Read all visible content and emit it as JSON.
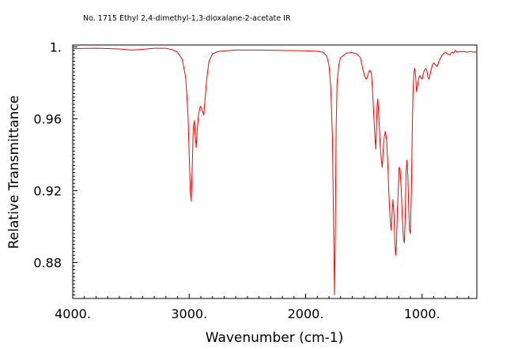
{
  "chart_data": {
    "type": "line",
    "title": "No. 1715 Ethyl 2,4-dimethyl-1,3-dioxalane-2-acetate IR",
    "xlabel": "Wavenumber (cm-1)",
    "ylabel": "Relative Transmittance",
    "xlim": [
      4000,
      530
    ],
    "ylim": [
      0.86,
      1.001
    ],
    "x_ticks": [
      4000,
      3000,
      2000,
      1000
    ],
    "x_tick_labels": [
      "4000.",
      "3000.",
      "2000.",
      "1000."
    ],
    "y_ticks": [
      1.0,
      0.96,
      0.92,
      0.88
    ],
    "y_tick_labels": [
      "1.",
      "0.96",
      "0.92",
      "0.88"
    ],
    "grid": false,
    "series": [
      {
        "color": "#ff0000",
        "points": [
          [
            4000,
            0.999
          ],
          [
            3800,
            0.9992
          ],
          [
            3600,
            0.9988
          ],
          [
            3500,
            0.9982
          ],
          [
            3400,
            0.9986
          ],
          [
            3300,
            0.9992
          ],
          [
            3200,
            0.9992
          ],
          [
            3150,
            0.9985
          ],
          [
            3100,
            0.997
          ],
          [
            3060,
            0.993
          ],
          [
            3030,
            0.983
          ],
          [
            3010,
            0.962
          ],
          [
            3000,
            0.94
          ],
          [
            2990,
            0.919
          ],
          [
            2983,
            0.914
          ],
          [
            2975,
            0.93
          ],
          [
            2965,
            0.955
          ],
          [
            2955,
            0.959
          ],
          [
            2948,
            0.951
          ],
          [
            2940,
            0.944
          ],
          [
            2932,
            0.953
          ],
          [
            2920,
            0.962
          ],
          [
            2905,
            0.967
          ],
          [
            2895,
            0.966
          ],
          [
            2885,
            0.964
          ],
          [
            2875,
            0.962
          ],
          [
            2865,
            0.97
          ],
          [
            2850,
            0.982
          ],
          [
            2830,
            0.992
          ],
          [
            2800,
            0.996
          ],
          [
            2750,
            0.9975
          ],
          [
            2600,
            0.9982
          ],
          [
            2400,
            0.9982
          ],
          [
            2200,
            0.998
          ],
          [
            2000,
            0.9978
          ],
          [
            1900,
            0.9975
          ],
          [
            1850,
            0.997
          ],
          [
            1820,
            0.995
          ],
          [
            1800,
            0.99
          ],
          [
            1785,
            0.978
          ],
          [
            1770,
            0.95
          ],
          [
            1760,
            0.9
          ],
          [
            1752,
            0.862
          ],
          [
            1745,
            0.9
          ],
          [
            1738,
            0.955
          ],
          [
            1730,
            0.98
          ],
          [
            1715,
            0.99
          ],
          [
            1700,
            0.994
          ],
          [
            1650,
            0.9965
          ],
          [
            1600,
            0.9968
          ],
          [
            1560,
            0.996
          ],
          [
            1530,
            0.994
          ],
          [
            1510,
            0.988
          ],
          [
            1495,
            0.984
          ],
          [
            1480,
            0.982
          ],
          [
            1470,
            0.983
          ],
          [
            1460,
            0.986
          ],
          [
            1448,
            0.987
          ],
          [
            1435,
            0.985
          ],
          [
            1425,
            0.975
          ],
          [
            1415,
            0.962
          ],
          [
            1405,
            0.95
          ],
          [
            1398,
            0.943
          ],
          [
            1392,
            0.955
          ],
          [
            1386,
            0.968
          ],
          [
            1380,
            0.971
          ],
          [
            1372,
            0.962
          ],
          [
            1360,
            0.945
          ],
          [
            1350,
            0.937
          ],
          [
            1342,
            0.933
          ],
          [
            1335,
            0.942
          ],
          [
            1325,
            0.95
          ],
          [
            1315,
            0.953
          ],
          [
            1305,
            0.948
          ],
          [
            1295,
            0.935
          ],
          [
            1285,
            0.918
          ],
          [
            1275,
            0.905
          ],
          [
            1265,
            0.898
          ],
          [
            1258,
            0.907
          ],
          [
            1250,
            0.915
          ],
          [
            1242,
            0.907
          ],
          [
            1235,
            0.893
          ],
          [
            1228,
            0.884
          ],
          [
            1220,
            0.89
          ],
          [
            1212,
            0.91
          ],
          [
            1205,
            0.92
          ],
          [
            1198,
            0.933
          ],
          [
            1190,
            0.932
          ],
          [
            1180,
            0.922
          ],
          [
            1170,
            0.905
          ],
          [
            1160,
            0.893
          ],
          [
            1152,
            0.891
          ],
          [
            1145,
            0.905
          ],
          [
            1138,
            0.93
          ],
          [
            1130,
            0.937
          ],
          [
            1122,
            0.928
          ],
          [
            1115,
            0.91
          ],
          [
            1108,
            0.898
          ],
          [
            1100,
            0.896
          ],
          [
            1092,
            0.92
          ],
          [
            1085,
            0.952
          ],
          [
            1078,
            0.975
          ],
          [
            1070,
            0.986
          ],
          [
            1062,
            0.988
          ],
          [
            1055,
            0.983
          ],
          [
            1048,
            0.975
          ],
          [
            1040,
            0.978
          ],
          [
            1030,
            0.982
          ],
          [
            1020,
            0.984
          ],
          [
            1010,
            0.983
          ],
          [
            1000,
            0.982
          ],
          [
            990,
            0.985
          ],
          [
            980,
            0.987
          ],
          [
            970,
            0.988
          ],
          [
            960,
            0.987
          ],
          [
            950,
            0.983
          ],
          [
            940,
            0.982
          ],
          [
            930,
            0.985
          ],
          [
            920,
            0.988
          ],
          [
            910,
            0.99
          ],
          [
            900,
            0.991
          ],
          [
            885,
            0.99
          ],
          [
            870,
            0.989
          ],
          [
            855,
            0.992
          ],
          [
            840,
            0.994
          ],
          [
            820,
            0.996
          ],
          [
            800,
            0.997
          ],
          [
            780,
            0.996
          ],
          [
            760,
            0.9955
          ],
          [
            745,
            0.997
          ],
          [
            730,
            0.9965
          ],
          [
            715,
            0.998
          ],
          [
            700,
            0.997
          ],
          [
            680,
            0.9975
          ],
          [
            660,
            0.9972
          ],
          [
            640,
            0.9975
          ],
          [
            620,
            0.997
          ],
          [
            600,
            0.9972
          ],
          [
            580,
            0.9975
          ],
          [
            560,
            0.997
          ],
          [
            545,
            0.9972
          ],
          [
            530,
            0.997
          ]
        ]
      }
    ]
  }
}
